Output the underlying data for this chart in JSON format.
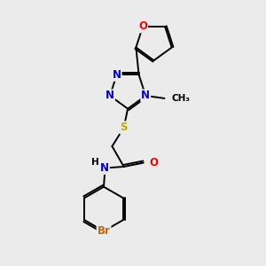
{
  "background_color": "#ebebeb",
  "atom_colors": {
    "C": "#000000",
    "N": "#0000cc",
    "O": "#ff0000",
    "S": "#bbaa00",
    "Br": "#cc6600",
    "H": "#000000"
  },
  "bond_color": "#000000",
  "font_size_atom": 8.5,
  "font_size_small": 7.5,
  "lw": 1.4
}
